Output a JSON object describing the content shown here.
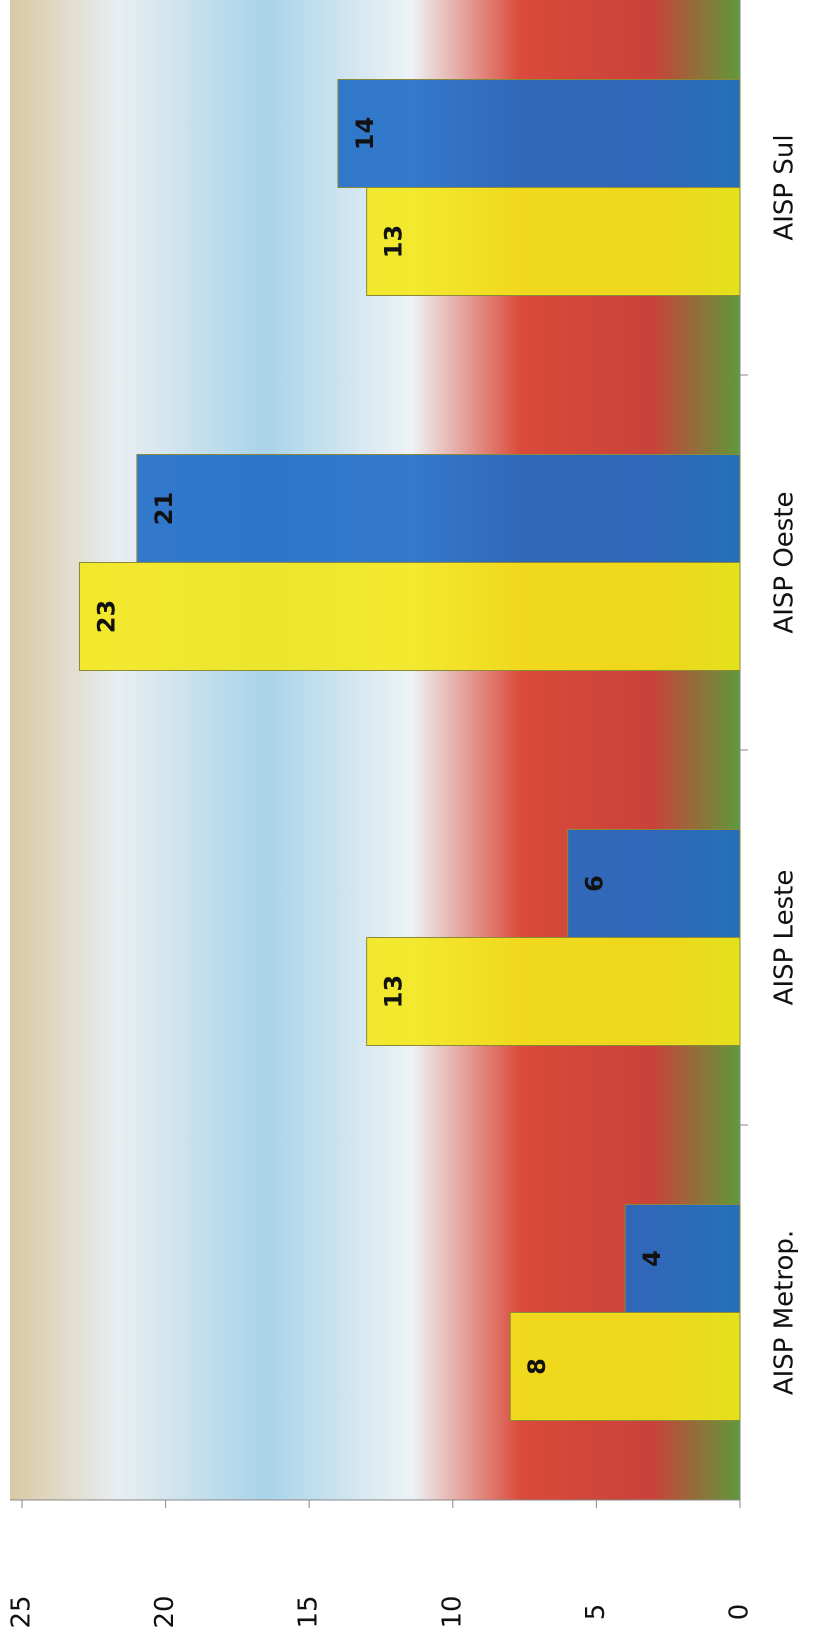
{
  "chart_data": {
    "type": "bar",
    "orientation": "rotated",
    "categories": [
      "AISP Metrop.",
      "AISP Leste",
      "AISP Oeste",
      "AISP Sul"
    ],
    "series": [
      {
        "color": "#f3e81a",
        "values": [
          8,
          13,
          23,
          13
        ]
      },
      {
        "color": "#1f6cc6",
        "values": [
          4,
          6,
          21,
          14
        ]
      }
    ],
    "ylim": [
      0,
      25
    ],
    "yticks": [
      0,
      5,
      10,
      15,
      20,
      25
    ]
  }
}
